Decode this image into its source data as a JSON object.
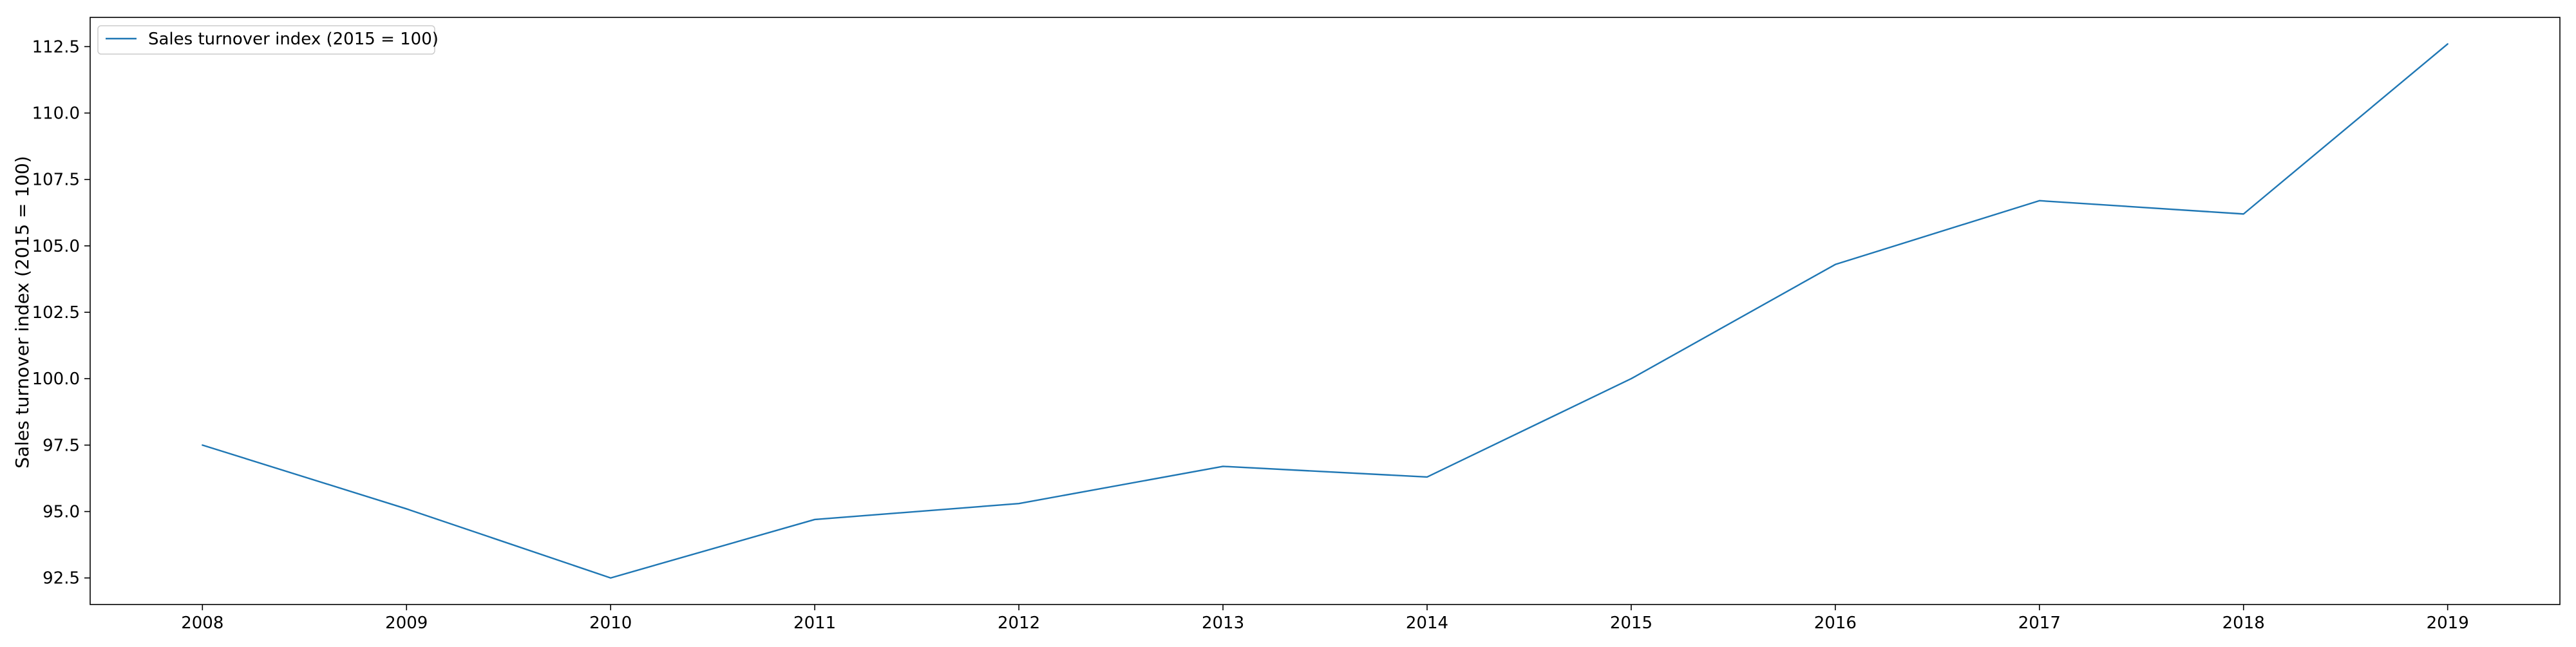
{
  "chart_data": {
    "type": "line",
    "title": "",
    "xlabel": "",
    "ylabel": "Sales turnover index (2015 = 100)",
    "x": [
      2008,
      2009,
      2010,
      2011,
      2012,
      2013,
      2014,
      2015,
      2016,
      2017,
      2018,
      2019
    ],
    "series": [
      {
        "name": "Sales turnover index (2015 = 100)",
        "color": "#1f77b4",
        "values": [
          97.5,
          95.1,
          92.5,
          94.7,
          95.3,
          96.7,
          96.3,
          100.0,
          104.3,
          106.7,
          106.2,
          112.6
        ]
      }
    ],
    "xlim": [
      2007.45,
      2019.55
    ],
    "ylim": [
      91.5,
      113.6
    ],
    "yticks": [
      "92.5",
      "95.0",
      "97.5",
      "100.0",
      "102.5",
      "105.0",
      "107.5",
      "110.0",
      "112.5"
    ],
    "xticks": [
      "2008",
      "2009",
      "2010",
      "2011",
      "2012",
      "2013",
      "2014",
      "2015",
      "2016",
      "2017",
      "2018",
      "2019"
    ],
    "grid": false,
    "legend_position": "top-left"
  }
}
